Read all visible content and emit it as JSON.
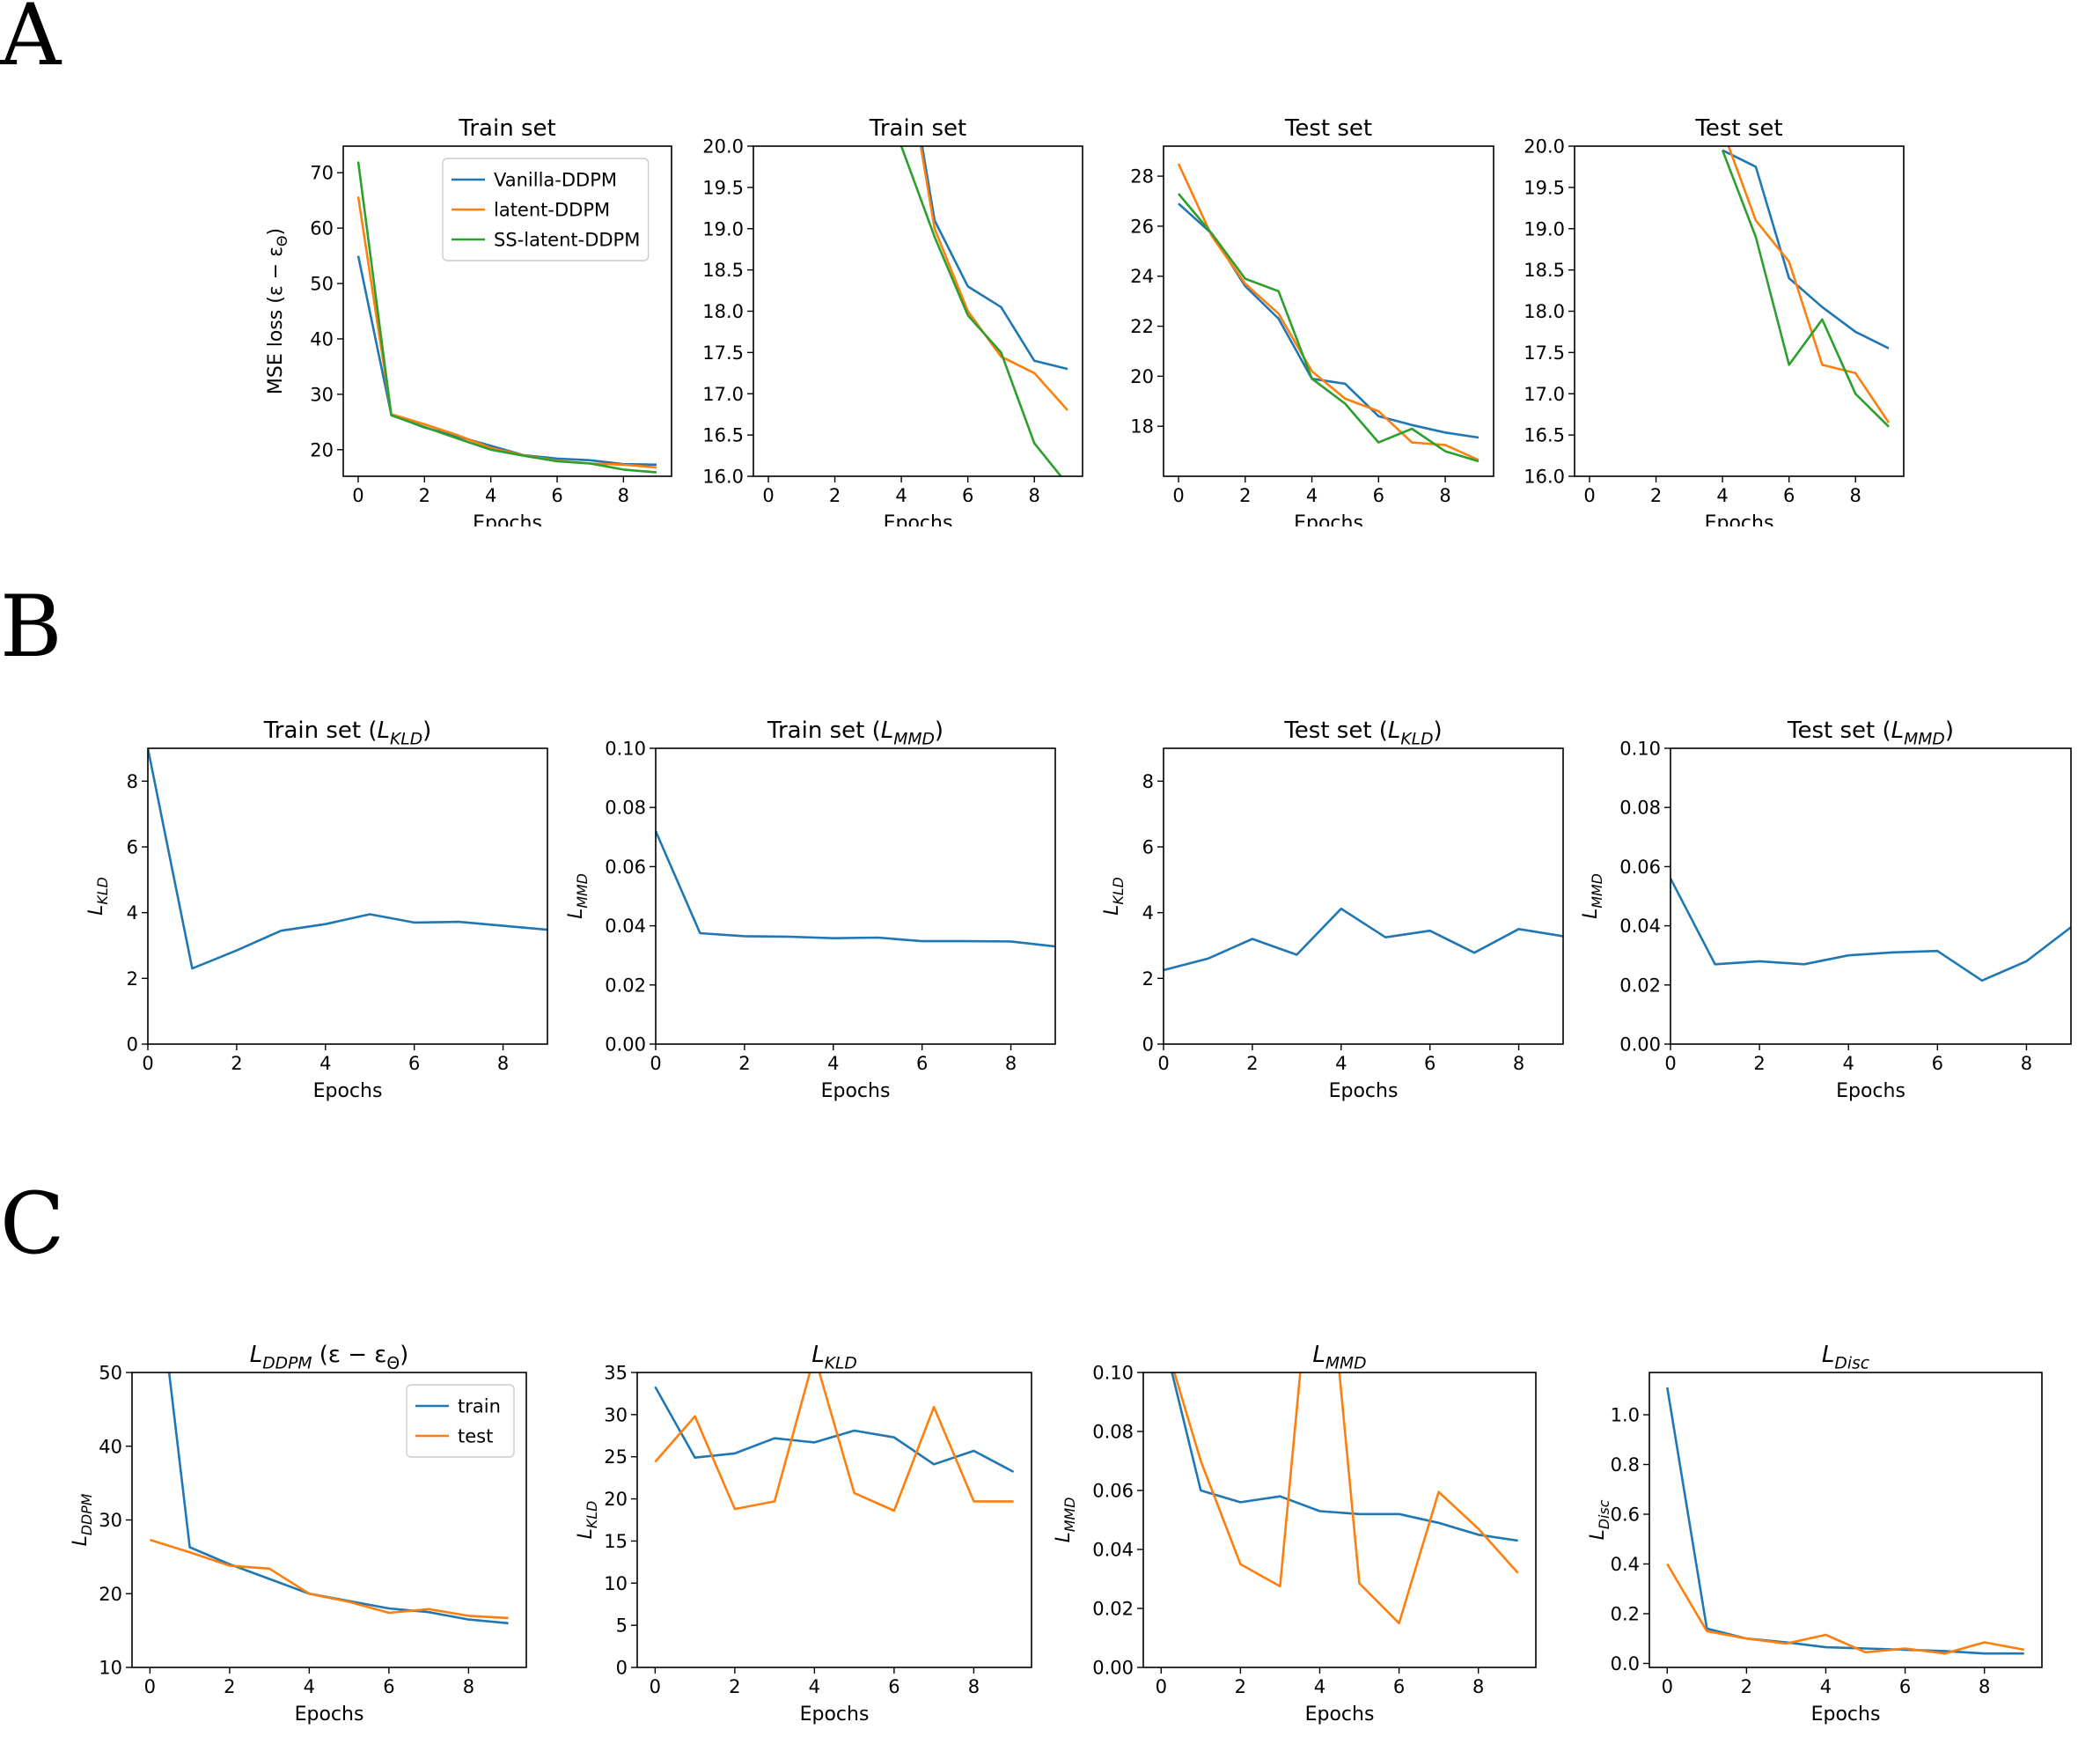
{
  "panels": [
    {
      "letter": "A",
      "row": 0
    },
    {
      "letter": "B",
      "row": 1
    },
    {
      "letter": "C",
      "row": 2
    }
  ],
  "chart_data": [
    {
      "type": "line",
      "row": 0,
      "col": 0,
      "title": [
        {
          "t": "Train set"
        }
      ],
      "xlabel": "Epochs",
      "ylabel": [
        {
          "t": "MSE loss (ε − ε"
        },
        {
          "t": "Θ",
          "sub": true
        },
        {
          "t": ")"
        }
      ],
      "xlim": [
        -0.45,
        9.45
      ],
      "ylim": [
        15.2,
        74.8
      ],
      "xticks": [
        0,
        2,
        4,
        6,
        8
      ],
      "yticks": [
        20,
        30,
        40,
        50,
        60,
        70
      ],
      "legend": {
        "position": "upper-right-inset"
      },
      "series": [
        {
          "name": "Vanilla-DDPM",
          "color": "#1f77b4",
          "x": [
            0,
            1,
            2,
            3,
            4,
            5,
            6,
            7,
            8,
            9
          ],
          "y": [
            55,
            26.3,
            24,
            22.4,
            20.7,
            19,
            18.4,
            18.1,
            17.4,
            17.3
          ]
        },
        {
          "name": "latent-DDPM",
          "color": "#ff7f0e",
          "x": [
            0,
            1,
            2,
            3,
            4,
            5,
            6,
            7,
            8,
            9
          ],
          "y": [
            65.7,
            26.4,
            24.6,
            22.6,
            20.3,
            19,
            18,
            17.5,
            17.3,
            16.8
          ]
        },
        {
          "name": "SS-latent-DDPM",
          "color": "#2ca02c",
          "x": [
            0,
            1,
            2,
            3,
            4,
            5,
            6,
            7,
            8,
            9
          ],
          "y": [
            72,
            26.2,
            24.1,
            22,
            20,
            18.9,
            17.9,
            17.5,
            16.4,
            15.9
          ]
        }
      ]
    },
    {
      "type": "line",
      "row": 0,
      "col": 1,
      "title": [
        {
          "t": "Train set"
        }
      ],
      "xlabel": "Epochs",
      "ylabel": [],
      "xlim": [
        -0.45,
        9.45
      ],
      "ylim": [
        16,
        20
      ],
      "xticks": [
        0,
        2,
        4,
        6,
        8
      ],
      "yticks": [
        16.0,
        16.5,
        17.0,
        17.5,
        18.0,
        18.5,
        19.0,
        19.5,
        20.0
      ],
      "ydecimals": 1,
      "series": [
        {
          "color": "#1f77b4",
          "x": [
            4,
            5,
            6,
            7,
            8,
            9
          ],
          "y": [
            21.5,
            19.1,
            18.3,
            18.05,
            17.4,
            17.3
          ]
        },
        {
          "color": "#ff7f0e",
          "x": [
            4,
            5,
            6,
            7,
            8,
            9
          ],
          "y": [
            21.4,
            19.0,
            18.0,
            17.45,
            17.25,
            16.8
          ]
        },
        {
          "color": "#2ca02c",
          "x": [
            4,
            5,
            6,
            7,
            8,
            9
          ],
          "y": [
            20.0,
            18.9,
            17.95,
            17.5,
            16.4,
            15.9
          ]
        }
      ]
    },
    {
      "type": "line",
      "row": 0,
      "col": 2,
      "title": [
        {
          "t": "Test set"
        }
      ],
      "xlabel": "Epochs",
      "ylabel": [],
      "xlim": [
        -0.45,
        9.45
      ],
      "ylim": [
        16.0,
        29.2
      ],
      "xticks": [
        0,
        2,
        4,
        6,
        8
      ],
      "yticks": [
        18,
        20,
        22,
        24,
        26,
        28
      ],
      "series": [
        {
          "color": "#1f77b4",
          "x": [
            0,
            1,
            2,
            3,
            4,
            5,
            6,
            7,
            8,
            9
          ],
          "y": [
            26.9,
            25.7,
            23.6,
            22.3,
            19.9,
            19.7,
            18.4,
            18.05,
            17.75,
            17.55
          ]
        },
        {
          "color": "#ff7f0e",
          "x": [
            0,
            1,
            2,
            3,
            4,
            5,
            6,
            7,
            8,
            9
          ],
          "y": [
            28.5,
            25.6,
            23.7,
            22.5,
            20.2,
            19.1,
            18.6,
            17.35,
            17.25,
            16.65
          ]
        },
        {
          "color": "#2ca02c",
          "x": [
            0,
            1,
            2,
            3,
            4,
            5,
            6,
            7,
            8,
            9
          ],
          "y": [
            27.3,
            25.7,
            23.9,
            23.4,
            19.9,
            18.9,
            17.35,
            17.9,
            17.0,
            16.6
          ]
        }
      ]
    },
    {
      "type": "line",
      "row": 0,
      "col": 3,
      "title": [
        {
          "t": "Test set"
        }
      ],
      "xlabel": "Epochs",
      "ylabel": [],
      "xlim": [
        -0.45,
        9.45
      ],
      "ylim": [
        16,
        20
      ],
      "xticks": [
        0,
        2,
        4,
        6,
        8
      ],
      "yticks": [
        16.0,
        16.5,
        17.0,
        17.5,
        18.0,
        18.5,
        19.0,
        19.5,
        20.0
      ],
      "ydecimals": 1,
      "series": [
        {
          "color": "#1f77b4",
          "x": [
            4,
            5,
            6,
            7,
            8,
            9
          ],
          "y": [
            19.95,
            19.75,
            18.4,
            18.05,
            17.75,
            17.55
          ]
        },
        {
          "color": "#ff7f0e",
          "x": [
            4,
            5,
            6,
            7,
            8,
            9
          ],
          "y": [
            20.2,
            19.1,
            18.6,
            17.35,
            17.25,
            16.65
          ]
        },
        {
          "color": "#2ca02c",
          "x": [
            4,
            5,
            6,
            7,
            8,
            9
          ],
          "y": [
            19.95,
            18.9,
            17.35,
            17.9,
            17.0,
            16.6
          ]
        }
      ]
    },
    {
      "type": "line",
      "row": 1,
      "col": 0,
      "title": [
        {
          "t": "Train set ("
        },
        {
          "t": "L",
          "italic": true
        },
        {
          "t": "KLD",
          "italic": true,
          "sub": true
        },
        {
          "t": ")"
        }
      ],
      "xlabel": "Epochs",
      "ylabel": [
        {
          "t": "L",
          "italic": true
        },
        {
          "t": "KLD",
          "italic": true,
          "sub": true
        }
      ],
      "xlim": [
        0,
        9
      ],
      "ylim": [
        0,
        9
      ],
      "xticks": [
        0,
        2,
        4,
        6,
        8
      ],
      "yticks": [
        0,
        2,
        4,
        6,
        8
      ],
      "series": [
        {
          "color": "#1f77b4",
          "x": [
            0,
            1,
            2,
            3,
            4,
            5,
            6,
            7,
            8,
            9
          ],
          "y": [
            9.0,
            2.3,
            2.85,
            3.45,
            3.65,
            3.95,
            3.7,
            3.72,
            3.6,
            3.48
          ]
        }
      ]
    },
    {
      "type": "line",
      "row": 1,
      "col": 1,
      "title": [
        {
          "t": "Train set ("
        },
        {
          "t": "L",
          "italic": true
        },
        {
          "t": "MMD",
          "italic": true,
          "sub": true
        },
        {
          "t": ")"
        }
      ],
      "xlabel": "Epochs",
      "ylabel": [
        {
          "t": "L",
          "italic": true
        },
        {
          "t": "MMD",
          "italic": true,
          "sub": true
        }
      ],
      "xlim": [
        0,
        9
      ],
      "ylim": [
        0,
        0.1
      ],
      "xticks": [
        0,
        2,
        4,
        6,
        8
      ],
      "yticks": [
        0.0,
        0.02,
        0.04,
        0.06,
        0.08,
        0.1
      ],
      "ydecimals": 2,
      "series": [
        {
          "color": "#1f77b4",
          "x": [
            0,
            1,
            2,
            3,
            4,
            5,
            6,
            7,
            8,
            9
          ],
          "y": [
            0.072,
            0.0375,
            0.0365,
            0.0363,
            0.0358,
            0.036,
            0.0348,
            0.0348,
            0.0347,
            0.033
          ]
        }
      ]
    },
    {
      "type": "line",
      "row": 1,
      "col": 2,
      "title": [
        {
          "t": "Test set ("
        },
        {
          "t": "L",
          "italic": true
        },
        {
          "t": "KLD",
          "italic": true,
          "sub": true
        },
        {
          "t": ")"
        }
      ],
      "xlabel": "Epochs",
      "ylabel": [
        {
          "t": "L",
          "italic": true
        },
        {
          "t": "KLD",
          "italic": true,
          "sub": true
        }
      ],
      "xlim": [
        0,
        9
      ],
      "ylim": [
        0,
        9
      ],
      "xticks": [
        0,
        2,
        4,
        6,
        8
      ],
      "yticks": [
        0,
        2,
        4,
        6,
        8
      ],
      "series": [
        {
          "color": "#1f77b4",
          "x": [
            0,
            1,
            2,
            3,
            4,
            5,
            6,
            7,
            8,
            9
          ],
          "y": [
            2.25,
            2.6,
            3.2,
            2.72,
            4.12,
            3.25,
            3.45,
            2.78,
            3.5,
            3.28
          ]
        }
      ]
    },
    {
      "type": "line",
      "row": 1,
      "col": 3,
      "title": [
        {
          "t": "Test set ("
        },
        {
          "t": "L",
          "italic": true
        },
        {
          "t": "MMD",
          "italic": true,
          "sub": true
        },
        {
          "t": ")"
        }
      ],
      "xlabel": "Epochs",
      "ylabel": [
        {
          "t": "L",
          "italic": true
        },
        {
          "t": "MMD",
          "italic": true,
          "sub": true
        }
      ],
      "xlim": [
        0,
        9
      ],
      "ylim": [
        0,
        0.1
      ],
      "xticks": [
        0,
        2,
        4,
        6,
        8
      ],
      "yticks": [
        0.0,
        0.02,
        0.04,
        0.06,
        0.08,
        0.1
      ],
      "ydecimals": 2,
      "series": [
        {
          "color": "#1f77b4",
          "x": [
            0,
            1,
            2,
            3,
            4,
            5,
            6,
            7,
            8,
            9
          ],
          "y": [
            0.056,
            0.027,
            0.028,
            0.027,
            0.03,
            0.031,
            0.0315,
            0.0215,
            0.028,
            0.0395
          ]
        }
      ]
    },
    {
      "type": "line",
      "row": 2,
      "col": 0,
      "title": [
        {
          "t": "L",
          "italic": true
        },
        {
          "t": "DDPM",
          "italic": true,
          "sub": true
        },
        {
          "t": " (ε − ε"
        },
        {
          "t": "Θ",
          "sub": true
        },
        {
          "t": ")"
        }
      ],
      "xlabel": "Epochs",
      "ylabel": [
        {
          "t": "L",
          "italic": true
        },
        {
          "t": "DDPM",
          "italic": true,
          "sub": true
        }
      ],
      "xlim": [
        -0.45,
        9.45
      ],
      "ylim": [
        10,
        50
      ],
      "xticks": [
        0,
        2,
        4,
        6,
        8
      ],
      "yticks": [
        10,
        20,
        30,
        40,
        50
      ],
      "legend": {
        "position": "upper-right-inset"
      },
      "series": [
        {
          "name": "train",
          "color": "#1f77b4",
          "x": [
            0,
            1,
            2,
            3,
            4,
            5,
            6,
            7,
            8,
            9
          ],
          "y": [
            72,
            26.3,
            24,
            22,
            20,
            19,
            18,
            17.5,
            16.5,
            16
          ]
        },
        {
          "name": "test",
          "color": "#ff7f0e",
          "x": [
            0,
            1,
            2,
            3,
            4,
            5,
            6,
            7,
            8,
            9
          ],
          "y": [
            27.3,
            25.6,
            23.8,
            23.4,
            20,
            18.9,
            17.4,
            17.9,
            17,
            16.7
          ]
        }
      ]
    },
    {
      "type": "line",
      "row": 2,
      "col": 1,
      "title": [
        {
          "t": "L",
          "italic": true
        },
        {
          "t": "KLD",
          "italic": true,
          "sub": true
        }
      ],
      "xlabel": "Epochs",
      "ylabel": [
        {
          "t": "L",
          "italic": true
        },
        {
          "t": "KLD",
          "italic": true,
          "sub": true
        }
      ],
      "xlim": [
        -0.45,
        9.45
      ],
      "ylim": [
        0,
        35
      ],
      "xticks": [
        0,
        2,
        4,
        6,
        8
      ],
      "yticks": [
        0,
        5,
        10,
        15,
        20,
        25,
        30,
        35
      ],
      "series": [
        {
          "color": "#1f77b4",
          "x": [
            0,
            1,
            2,
            3,
            4,
            5,
            6,
            7,
            8,
            9
          ],
          "y": [
            33.3,
            24.9,
            25.4,
            27.2,
            26.7,
            28.1,
            27.3,
            24.1,
            25.7,
            23.2
          ]
        },
        {
          "color": "#ff7f0e",
          "x": [
            0,
            1,
            2,
            3,
            4,
            5,
            6,
            7,
            8,
            9
          ],
          "y": [
            24.4,
            29.8,
            18.8,
            19.7,
            37.0,
            20.7,
            18.6,
            30.9,
            19.7,
            19.7
          ]
        }
      ]
    },
    {
      "type": "line",
      "row": 2,
      "col": 2,
      "title": [
        {
          "t": "L",
          "italic": true
        },
        {
          "t": "MMD",
          "italic": true,
          "sub": true
        }
      ],
      "xlabel": "Epochs",
      "ylabel": [
        {
          "t": "L",
          "italic": true
        },
        {
          "t": "MMD",
          "italic": true,
          "sub": true
        }
      ],
      "xlim": [
        -0.45,
        9.45
      ],
      "ylim": [
        0,
        0.1
      ],
      "xticks": [
        0,
        2,
        4,
        6,
        8
      ],
      "yticks": [
        0.0,
        0.02,
        0.04,
        0.06,
        0.08,
        0.1
      ],
      "ydecimals": 2,
      "series": [
        {
          "color": "#1f77b4",
          "x": [
            0,
            1,
            2,
            3,
            4,
            5,
            6,
            7,
            8,
            9
          ],
          "y": [
            0.115,
            0.06,
            0.056,
            0.058,
            0.053,
            0.052,
            0.052,
            0.049,
            0.045,
            0.043
          ]
        },
        {
          "color": "#ff7f0e",
          "x": [
            0,
            1,
            2,
            3,
            4,
            5,
            6,
            7,
            8,
            9
          ],
          "y": [
            0.115,
            0.07,
            0.035,
            0.0275,
            0.17,
            0.0285,
            0.015,
            0.0595,
            0.047,
            0.032
          ]
        }
      ]
    },
    {
      "type": "line",
      "row": 2,
      "col": 3,
      "title": [
        {
          "t": "L",
          "italic": true
        },
        {
          "t": "Disc",
          "italic": true,
          "sub": true
        }
      ],
      "xlabel": "Epochs",
      "ylabel": [
        {
          "t": "L",
          "italic": true
        },
        {
          "t": "Disc",
          "italic": true,
          "sub": true
        }
      ],
      "xlim": [
        -0.45,
        9.45
      ],
      "ylim": [
        -0.016,
        1.17
      ],
      "xticks": [
        0,
        2,
        4,
        6,
        8
      ],
      "yticks": [
        0.0,
        0.2,
        0.4,
        0.6,
        0.8,
        1.0
      ],
      "ydecimals": 1,
      "series": [
        {
          "color": "#1f77b4",
          "x": [
            0,
            1,
            2,
            3,
            4,
            5,
            6,
            7,
            8,
            9
          ],
          "y": [
            1.11,
            0.14,
            0.1,
            0.085,
            0.065,
            0.06,
            0.055,
            0.05,
            0.04,
            0.04
          ]
        },
        {
          "color": "#ff7f0e",
          "x": [
            0,
            1,
            2,
            3,
            4,
            5,
            6,
            7,
            8,
            9
          ],
          "y": [
            0.4,
            0.13,
            0.1,
            0.08,
            0.115,
            0.045,
            0.06,
            0.04,
            0.085,
            0.055
          ]
        }
      ]
    }
  ]
}
